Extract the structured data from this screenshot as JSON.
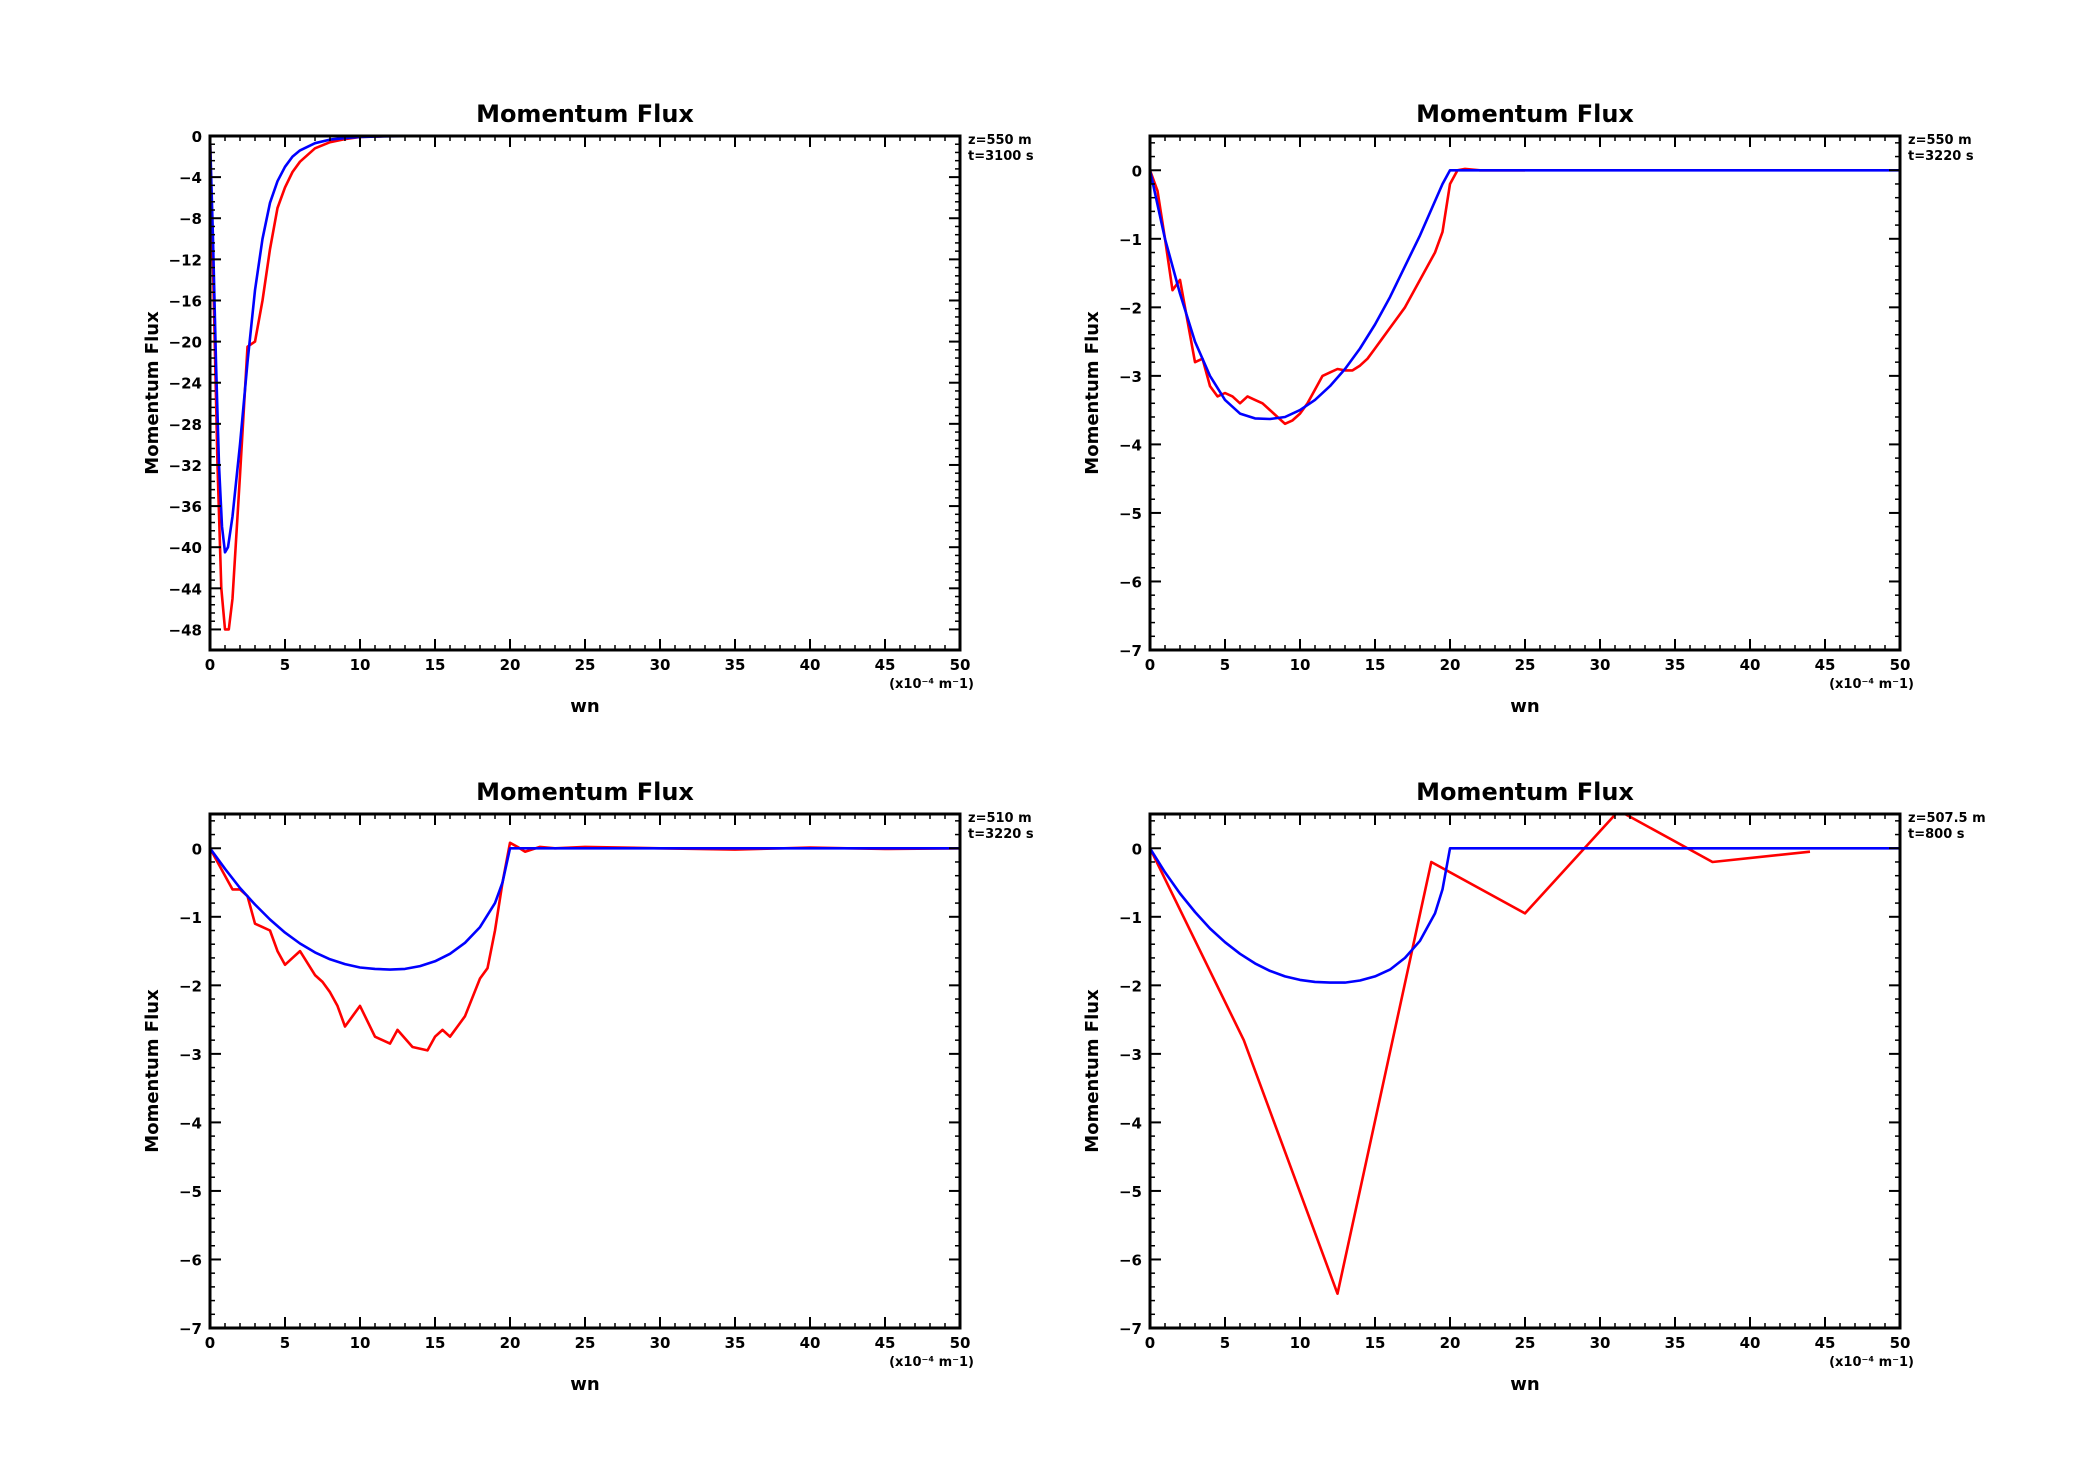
{
  "chart_data": [
    {
      "type": "line",
      "title": "Momentum Flux",
      "xlabel": "wn",
      "ylabel": "Momentum Flux",
      "x_unit": "(x10⁻⁴ m⁻1)",
      "xlim": [
        0,
        50
      ],
      "ylim": [
        -50,
        0
      ],
      "x_ticks": [
        0,
        5,
        10,
        15,
        20,
        25,
        30,
        35,
        40,
        45,
        50
      ],
      "y_ticks": [
        0,
        -4,
        -8,
        -12,
        -16,
        -20,
        -24,
        -28,
        -32,
        -36,
        -40,
        -44,
        -48
      ],
      "annotation": [
        "z=550 m",
        "t=3100 s"
      ],
      "grid": false,
      "series": [
        {
          "color": "#ff0000",
          "x": [
            0,
            0.25,
            0.5,
            0.75,
            1.0,
            1.25,
            1.5,
            2.0,
            2.5,
            3.0,
            3.5,
            4.0,
            4.5,
            5.0,
            5.5,
            6.0,
            7.0,
            8.0,
            9.0,
            10.0,
            12.0,
            15.0
          ],
          "y": [
            0,
            -16,
            -32,
            -44,
            -48,
            -48,
            -45,
            -33,
            -20.5,
            -20,
            -16,
            -11,
            -7,
            -5,
            -3.5,
            -2.5,
            -1.2,
            -0.6,
            -0.3,
            -0.1,
            0,
            0
          ]
        },
        {
          "color": "#0000ff",
          "x": [
            0,
            0.2,
            0.4,
            0.6,
            0.8,
            1.0,
            1.2,
            1.5,
            2.0,
            2.5,
            3.0,
            3.5,
            4.0,
            4.5,
            5.0,
            5.5,
            6.0,
            7.0,
            8.0,
            9.0,
            10.0,
            12.0,
            15.0,
            20.0,
            30.0,
            40.0,
            50.0
          ],
          "y": [
            0,
            -10,
            -22,
            -32,
            -38,
            -40.5,
            -40,
            -37,
            -30,
            -22,
            -15,
            -10,
            -6.5,
            -4.4,
            -3.0,
            -2.0,
            -1.4,
            -0.7,
            -0.35,
            -0.2,
            -0.1,
            -0.03,
            0,
            0,
            0,
            0,
            0
          ]
        }
      ]
    },
    {
      "type": "line",
      "title": "Momentum Flux",
      "xlabel": "wn",
      "ylabel": "Momentum Flux",
      "x_unit": "(x10⁻⁴ m⁻1)",
      "xlim": [
        0,
        50
      ],
      "ylim": [
        -7,
        0.5
      ],
      "x_ticks": [
        0,
        5,
        10,
        15,
        20,
        25,
        30,
        35,
        40,
        45,
        50
      ],
      "y_ticks": [
        0,
        -1,
        -2,
        -3,
        -4,
        -5,
        -6,
        -7
      ],
      "annotation": [
        "z=550 m",
        "t=3220 s"
      ],
      "grid": false,
      "series": [
        {
          "color": "#ff0000",
          "x": [
            0,
            0.5,
            1.0,
            1.5,
            2.0,
            2.5,
            3.0,
            3.5,
            4.0,
            4.5,
            5.0,
            5.5,
            6.0,
            6.5,
            7.0,
            7.5,
            8.0,
            8.5,
            9.0,
            9.5,
            10.0,
            10.5,
            11.0,
            11.5,
            12.0,
            12.5,
            13.0,
            13.5,
            14.0,
            14.5,
            15.0,
            15.5,
            16.0,
            17.0,
            18.0,
            19.0,
            19.5,
            20.0,
            20.5,
            21.0,
            22.0,
            23.0,
            25.0
          ],
          "y": [
            0,
            -0.3,
            -1.0,
            -1.75,
            -1.6,
            -2.2,
            -2.8,
            -2.75,
            -3.15,
            -3.3,
            -3.25,
            -3.3,
            -3.4,
            -3.3,
            -3.35,
            -3.4,
            -3.5,
            -3.6,
            -3.7,
            -3.65,
            -3.55,
            -3.4,
            -3.2,
            -3.0,
            -2.95,
            -2.9,
            -2.92,
            -2.92,
            -2.85,
            -2.75,
            -2.6,
            -2.45,
            -2.3,
            -2.0,
            -1.6,
            -1.2,
            -0.9,
            -0.2,
            0.0,
            0.02,
            0,
            0,
            0
          ]
        },
        {
          "color": "#0000ff",
          "x": [
            0,
            1,
            2,
            3,
            4,
            5,
            6,
            7,
            8,
            9,
            10,
            11,
            12,
            13,
            14,
            15,
            16,
            17,
            18,
            19,
            19.5,
            20,
            50
          ],
          "y": [
            0,
            -1.0,
            -1.8,
            -2.5,
            -3.0,
            -3.35,
            -3.55,
            -3.62,
            -3.63,
            -3.6,
            -3.5,
            -3.35,
            -3.15,
            -2.9,
            -2.6,
            -2.25,
            -1.85,
            -1.4,
            -0.95,
            -0.45,
            -0.2,
            0,
            0
          ]
        }
      ]
    },
    {
      "type": "line",
      "title": "Momentum Flux",
      "xlabel": "wn",
      "ylabel": "Momentum Flux",
      "x_unit": "(x10⁻⁴ m⁻1)",
      "xlim": [
        0,
        50
      ],
      "ylim": [
        -7,
        0.5
      ],
      "x_ticks": [
        0,
        5,
        10,
        15,
        20,
        25,
        30,
        35,
        40,
        45,
        50
      ],
      "y_ticks": [
        0,
        -1,
        -2,
        -3,
        -4,
        -5,
        -6,
        -7
      ],
      "annotation": [
        "z=510 m",
        "t=3220 s"
      ],
      "grid": false,
      "series": [
        {
          "color": "#ff0000",
          "x": [
            0,
            1.0,
            1.5,
            2.0,
            2.5,
            3.0,
            3.5,
            4.0,
            4.5,
            5.0,
            5.5,
            6.0,
            7.0,
            7.5,
            8.0,
            8.5,
            9.0,
            9.5,
            10.0,
            11.0,
            12.0,
            12.5,
            13.5,
            14.5,
            15.0,
            15.5,
            16.0,
            16.5,
            17.0,
            18.0,
            18.5,
            19.0,
            19.5,
            20.0,
            20.5,
            21.0,
            22.0,
            23.0,
            25.0,
            30.0,
            35.0,
            40.0,
            45.0,
            50.0
          ],
          "y": [
            0,
            -0.4,
            -0.6,
            -0.6,
            -0.7,
            -1.1,
            -1.15,
            -1.2,
            -1.5,
            -1.7,
            -1.6,
            -1.5,
            -1.85,
            -1.95,
            -2.1,
            -2.3,
            -2.6,
            -2.45,
            -2.3,
            -2.75,
            -2.85,
            -2.65,
            -2.9,
            -2.95,
            -2.75,
            -2.65,
            -2.75,
            -2.6,
            -2.45,
            -1.9,
            -1.75,
            -1.2,
            -0.5,
            0.08,
            0.02,
            -0.05,
            0.02,
            0,
            0.02,
            0,
            -0.02,
            0.01,
            -0.01,
            0
          ]
        },
        {
          "color": "#0000ff",
          "x": [
            0,
            1,
            2,
            3,
            4,
            5,
            6,
            7,
            8,
            9,
            10,
            11,
            12,
            13,
            14,
            15,
            16,
            17,
            18,
            19,
            19.5,
            20,
            50
          ],
          "y": [
            0,
            -0.3,
            -0.58,
            -0.82,
            -1.04,
            -1.23,
            -1.39,
            -1.52,
            -1.62,
            -1.69,
            -1.74,
            -1.76,
            -1.77,
            -1.76,
            -1.72,
            -1.65,
            -1.54,
            -1.38,
            -1.15,
            -0.8,
            -0.5,
            0,
            0
          ]
        }
      ]
    },
    {
      "type": "line",
      "title": "Momentum Flux",
      "xlabel": "wn",
      "ylabel": "Momentum Flux",
      "x_unit": "(x10⁻⁴ m⁻1)",
      "xlim": [
        0,
        50
      ],
      "ylim": [
        -7,
        0.5
      ],
      "x_ticks": [
        0,
        5,
        10,
        15,
        20,
        25,
        30,
        35,
        40,
        45,
        50
      ],
      "y_ticks": [
        0,
        -1,
        -2,
        -3,
        -4,
        -5,
        -6,
        -7
      ],
      "annotation": [
        "z=507.5 m",
        "t=800 s"
      ],
      "grid": false,
      "series": [
        {
          "color": "#ff0000",
          "x": [
            0,
            6.25,
            12.5,
            18.75,
            25.0,
            31.25,
            37.5,
            44.0
          ],
          "y": [
            0,
            -2.8,
            -6.5,
            -0.2,
            -0.95,
            0.55,
            -0.2,
            -0.05
          ]
        },
        {
          "color": "#0000ff",
          "x": [
            0,
            1,
            2,
            3,
            4,
            5,
            6,
            7,
            8,
            9,
            10,
            11,
            12,
            13,
            14,
            15,
            16,
            17,
            18,
            19,
            19.5,
            20,
            50
          ],
          "y": [
            0,
            -0.35,
            -0.66,
            -0.93,
            -1.17,
            -1.37,
            -1.54,
            -1.68,
            -1.79,
            -1.87,
            -1.92,
            -1.95,
            -1.96,
            -1.96,
            -1.93,
            -1.87,
            -1.77,
            -1.6,
            -1.35,
            -0.95,
            -0.6,
            0,
            0
          ]
        }
      ]
    }
  ]
}
